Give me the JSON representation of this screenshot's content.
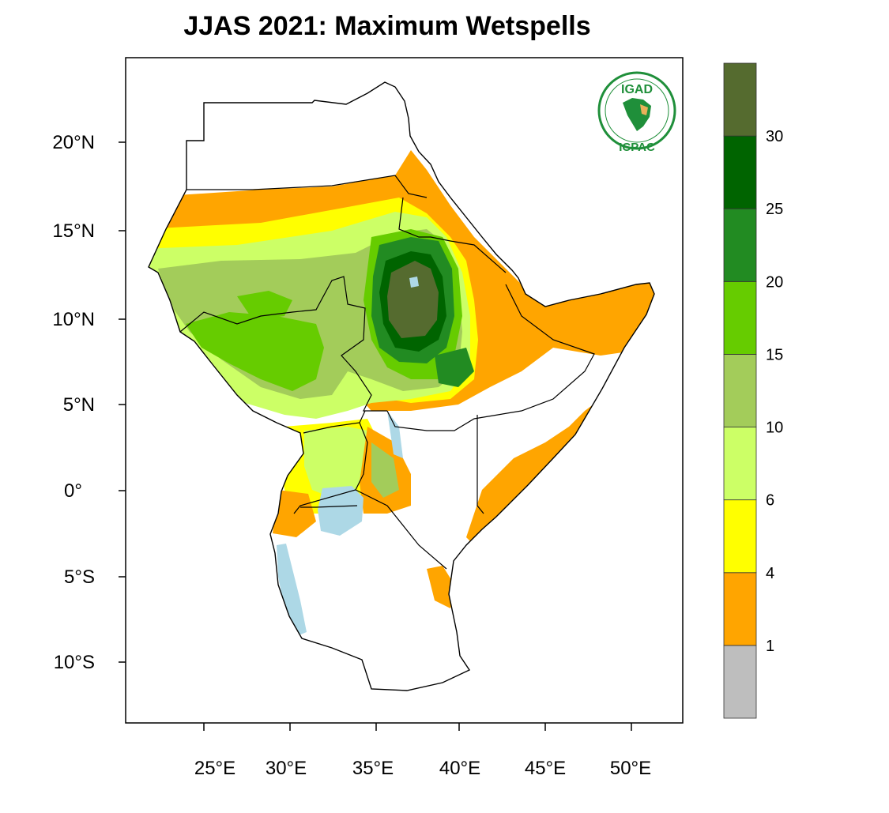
{
  "title": "JJAS 2021: Maximum Wetspells",
  "axes": {
    "lon_ticks": [
      {
        "value": 25,
        "label": "25°E"
      },
      {
        "value": 30,
        "label": "30°E"
      },
      {
        "value": 35,
        "label": "35°E"
      },
      {
        "value": 40,
        "label": "40°E"
      },
      {
        "value": 45,
        "label": "45°E"
      },
      {
        "value": 50,
        "label": "50°E"
      }
    ],
    "lat_ticks": [
      {
        "value": 20,
        "label": "20°N"
      },
      {
        "value": 15,
        "label": "15°N"
      },
      {
        "value": 10,
        "label": "10°N"
      },
      {
        "value": 5,
        "label": "5°N"
      },
      {
        "value": 0,
        "label": "0°"
      },
      {
        "value": -5,
        "label": "5°S"
      },
      {
        "value": -10,
        "label": "10°S"
      }
    ],
    "lon_range": [
      20.5,
      53
    ],
    "lat_range": [
      -13.5,
      24.8
    ]
  },
  "colorbar": {
    "colors": [
      "#bebebe",
      "#ffa500",
      "#ffff00",
      "#ccff66",
      "#a3cc5a",
      "#66cc00",
      "#228b22",
      "#006400",
      "#556b2f"
    ],
    "labels": [
      "1",
      "4",
      "6",
      "10",
      "15",
      "20",
      "25",
      "30"
    ]
  },
  "logo": {
    "top_text": "IGAD",
    "bottom_text": "ICPAC",
    "accent_color": "#1f8f3a"
  }
}
